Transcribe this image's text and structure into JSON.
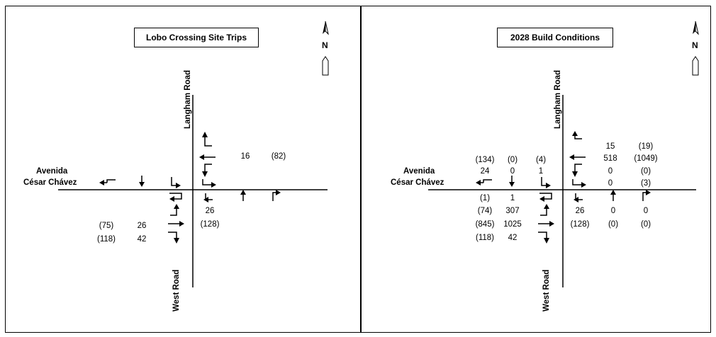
{
  "left": {
    "title": "Lobo Crossing Site Trips",
    "north_label": "N",
    "ns_street_top": "Langham Road",
    "ns_street_bottom": "West Road",
    "ew_street_line1": "Avenida",
    "ew_street_line2": "César Chávez",
    "volumes": {
      "wb_through": "16",
      "wb_through_pm": "(82)",
      "nb_left": "26",
      "nb_left_pm": "(128)",
      "eb_left": "26",
      "eb_left_pm": "(75)",
      "eb_through": "42",
      "eb_through_pm": "(118)"
    }
  },
  "right": {
    "title": "2028 Build Conditions",
    "north_label": "N",
    "ns_street_top": "Langham Road",
    "ns_street_bottom": "West Road",
    "ew_street_line1": "Avenida",
    "ew_street_line2": "César Chávez",
    "volumes": {
      "sb_right_pm": "(134)",
      "sb_through_pm": "(0)",
      "sb_left_pm": "(4)",
      "sb_right": "24",
      "sb_through": "0",
      "sb_left": "1",
      "wb_right": "15",
      "wb_right_pm": "(19)",
      "wb_through": "518",
      "wb_through_pm": "(1049)",
      "wb_left": "0",
      "wb_left_pm": "(0)",
      "wb_uturn": "0",
      "wb_uturn_pm": "(3)",
      "eb_uturn_pm": "(1)",
      "eb_uturn": "1",
      "eb_left_pm": "(74)",
      "eb_left": "307",
      "eb_through_pm": "(845)",
      "eb_through": "1025",
      "eb_right_pm": "(118)",
      "eb_right": "42",
      "nb_left": "26",
      "nb_through": "0",
      "nb_right": "0",
      "nb_left_pm": "(128)",
      "nb_through_pm": "(0)",
      "nb_right_pm": "(0)"
    }
  }
}
